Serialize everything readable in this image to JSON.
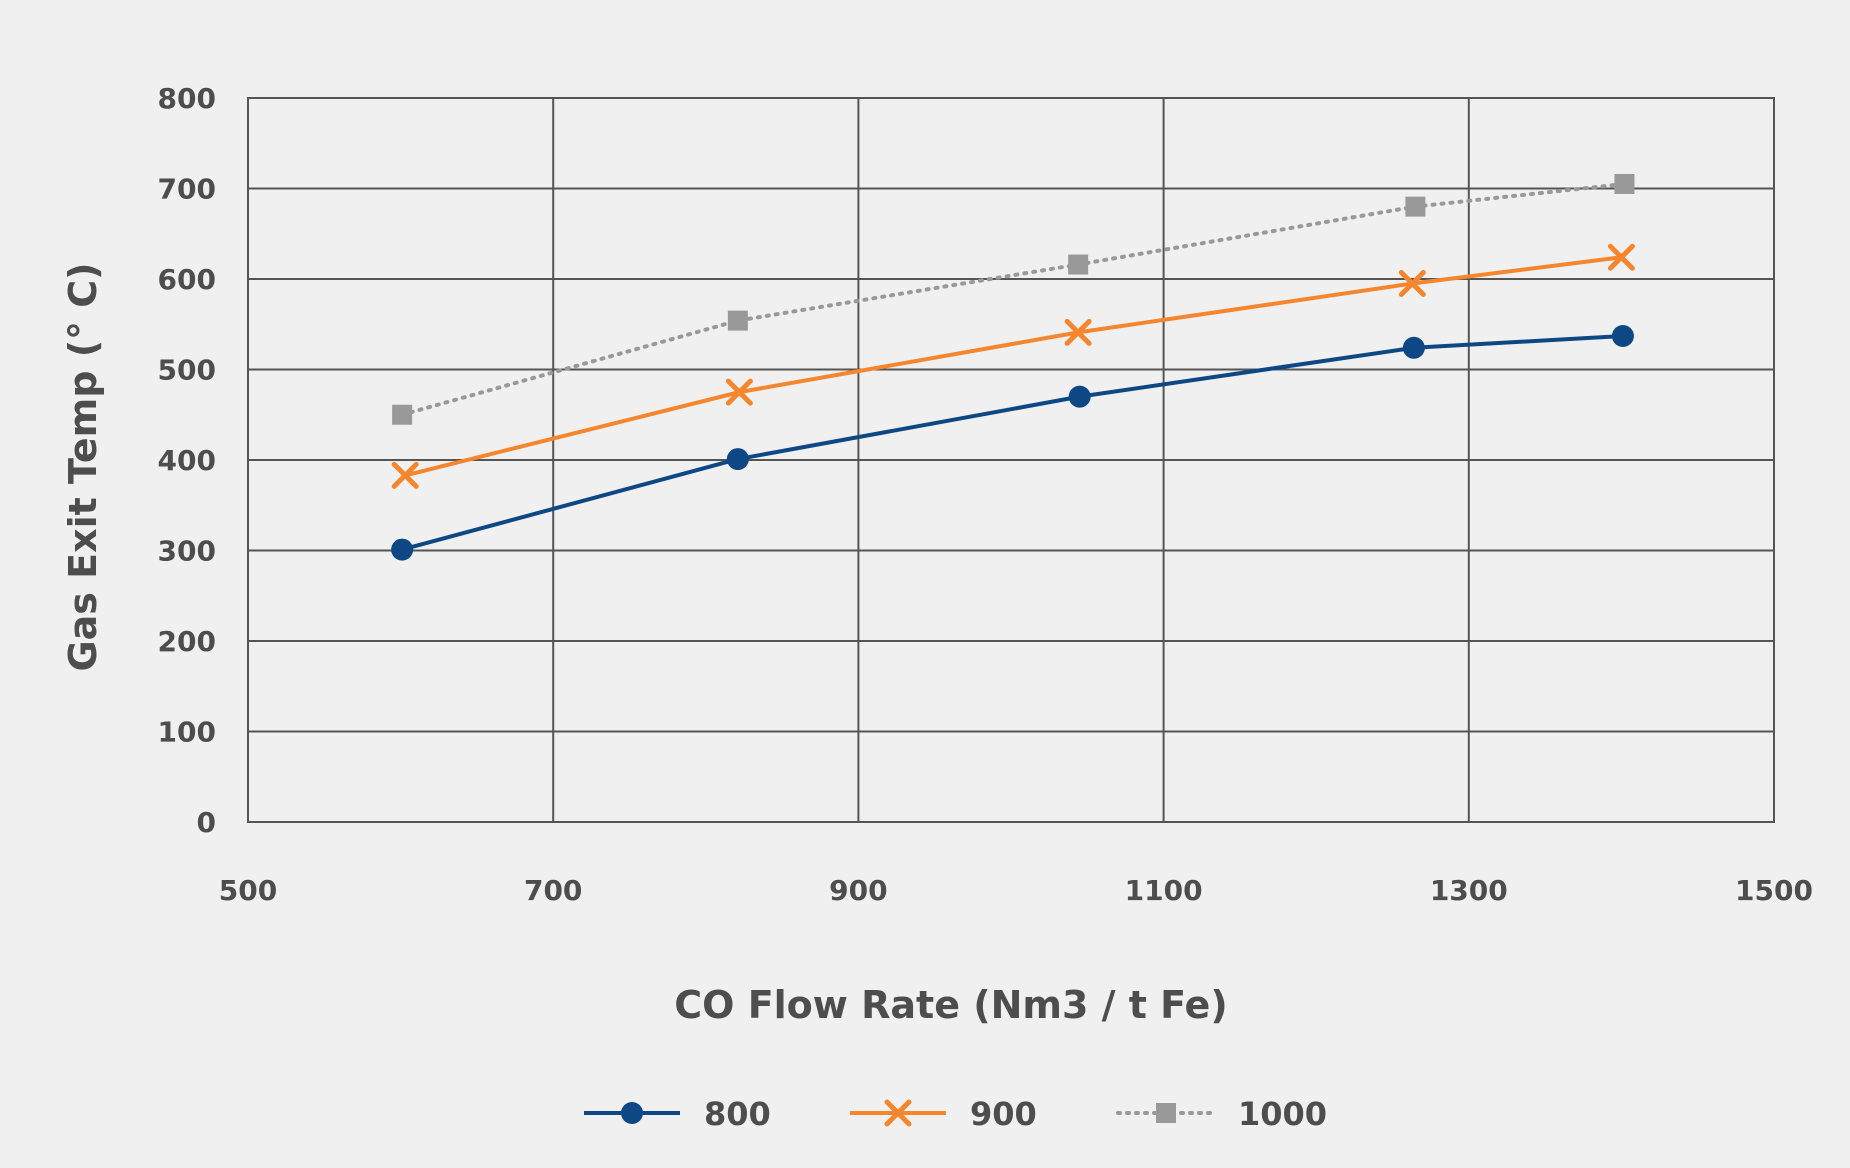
{
  "chart_data": {
    "type": "line",
    "title": "",
    "xlabel": "CO Flow Rate (Nm3 / t Fe)",
    "ylabel": "Gas Exit Temp (° C)",
    "xlim": [
      500,
      1500
    ],
    "ylim": [
      0,
      800
    ],
    "xticks": [
      500,
      700,
      900,
      1100,
      1300,
      1500
    ],
    "yticks": [
      0,
      100,
      200,
      300,
      400,
      500,
      600,
      700,
      800
    ],
    "grid": true,
    "legend_position": "bottom",
    "series": [
      {
        "name": "800",
        "color": "#0d4885",
        "marker": "circle",
        "line_style": "solid",
        "x": [
          601,
          821,
          1045,
          1264,
          1401
        ],
        "y": [
          301,
          401,
          470,
          524,
          537
        ]
      },
      {
        "name": "900",
        "color": "#f5862e",
        "marker": "x",
        "line_style": "solid",
        "x": [
          603,
          822,
          1044,
          1263,
          1400
        ],
        "y": [
          383,
          475,
          541,
          595,
          624
        ]
      },
      {
        "name": "1000",
        "color": "#999999",
        "marker": "square",
        "line_style": "dotted",
        "x": [
          601,
          821,
          1044,
          1265,
          1402
        ],
        "y": [
          450,
          554,
          616,
          680,
          705
        ]
      }
    ]
  }
}
